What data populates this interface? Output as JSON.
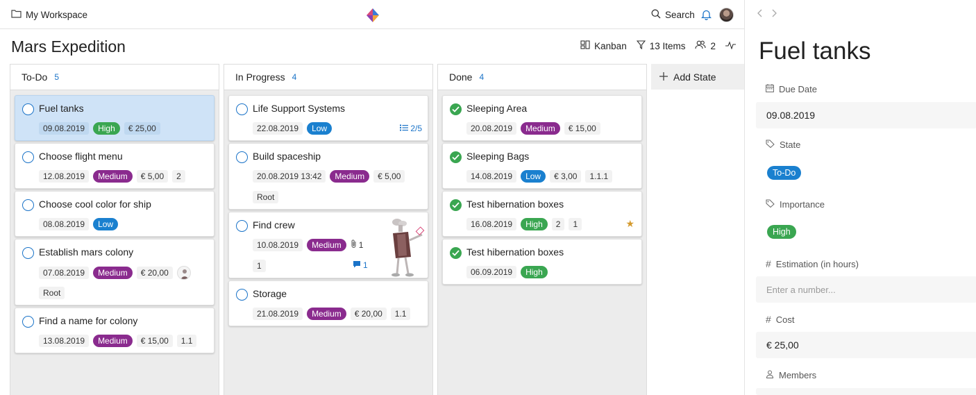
{
  "header": {
    "workspace": "My Workspace",
    "search_label": "Search"
  },
  "page": {
    "title": "Mars Expedition",
    "view_label": "Kanban",
    "items_label": "13 Items",
    "members_count": "2"
  },
  "columns": [
    {
      "name": "To-Do",
      "count": "5",
      "cards": [
        {
          "title": "Fuel tanks",
          "date": "09.08.2019",
          "priority": "High",
          "cost": "€ 25,00"
        },
        {
          "title": "Choose flight menu",
          "date": "12.08.2019",
          "priority": "Medium",
          "cost": "€ 5,00",
          "extra": "2"
        },
        {
          "title": "Choose cool color for ship",
          "date": "08.08.2019",
          "priority": "Low"
        },
        {
          "title": "Establish mars colony",
          "date": "07.08.2019",
          "priority": "Medium",
          "cost": "€ 20,00",
          "tag": "Root"
        },
        {
          "title": "Find a name for colony",
          "date": "13.08.2019",
          "priority": "Medium",
          "cost": "€ 15,00",
          "extra": "1.1"
        }
      ]
    },
    {
      "name": "In Progress",
      "count": "4",
      "cards": [
        {
          "title": "Life Support Systems",
          "date": "22.08.2019",
          "priority": "Low",
          "subtasks": "2/5"
        },
        {
          "title": "Build spaceship",
          "date": "20.08.2019 13:42",
          "priority": "Medium",
          "cost": "€ 5,00",
          "tag": "Root"
        },
        {
          "title": "Find crew",
          "date": "10.08.2019",
          "priority": "Medium",
          "attachments": "1",
          "extra": "1",
          "comments": "1"
        },
        {
          "title": "Storage",
          "date": "21.08.2019",
          "priority": "Medium",
          "cost": "€ 20,00",
          "extra": "1.1"
        }
      ]
    },
    {
      "name": "Done",
      "count": "4",
      "cards": [
        {
          "title": "Sleeping Area",
          "date": "20.08.2019",
          "priority": "Medium",
          "cost": "€ 15,00"
        },
        {
          "title": "Sleeping Bags",
          "date": "14.08.2019",
          "priority": "Low",
          "cost": "€ 3,00",
          "extra": "1.1.1"
        },
        {
          "title": "Test hibernation boxes",
          "date": "16.08.2019",
          "priority": "High",
          "extra": "2",
          "extra2": "1"
        },
        {
          "title": "Test hibernation boxes",
          "date": "06.09.2019",
          "priority": "High"
        }
      ]
    }
  ],
  "add_state_label": "Add State",
  "detail": {
    "title": "Fuel tanks",
    "due_date_label": "Due Date",
    "due_date": "09.08.2019",
    "state_label": "State",
    "state": "To-Do",
    "importance_label": "Importance",
    "importance": "High",
    "estimation_label": "Estimation (in hours)",
    "estimation_placeholder": "Enter a number...",
    "cost_label": "Cost",
    "cost": "€ 25,00",
    "members_label": "Members"
  },
  "colors": {
    "high": "#3aa651",
    "medium": "#8a2b8e",
    "low": "#1a80cf",
    "accent": "#1a73c8",
    "selected": "#cfe3f7"
  },
  "icons": [
    "folder-icon",
    "logo-icon",
    "search-icon",
    "bell-icon",
    "kanban-icon",
    "filter-icon",
    "members-icon",
    "activity-icon",
    "plus-icon",
    "calendar-icon",
    "tag-icon",
    "hash-icon",
    "person-icon",
    "check-icon",
    "list-icon",
    "paperclip-icon",
    "comment-icon",
    "star-icon",
    "chevron-left-icon",
    "chevron-right-icon"
  ]
}
